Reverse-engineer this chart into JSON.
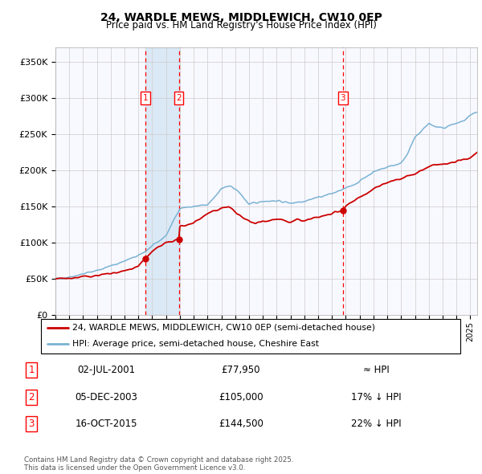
{
  "title": "24, WARDLE MEWS, MIDDLEWICH, CW10 0EP",
  "subtitle": "Price paid vs. HM Land Registry's House Price Index (HPI)",
  "ylabel_ticks": [
    "£0",
    "£50K",
    "£100K",
    "£150K",
    "£200K",
    "£250K",
    "£300K",
    "£350K"
  ],
  "ytick_values": [
    0,
    50000,
    100000,
    150000,
    200000,
    250000,
    300000,
    350000
  ],
  "ylim": [
    0,
    370000
  ],
  "xlim_start": 1995.0,
  "xlim_end": 2025.5,
  "sale_dates": [
    2001.5,
    2003.92,
    2015.79
  ],
  "sale_prices": [
    77950,
    105000,
    144500
  ],
  "sale_labels": [
    "1",
    "2",
    "3"
  ],
  "shade_pairs": [
    [
      2001.5,
      2003.92
    ]
  ],
  "hpi_color": "#7ab3d3",
  "price_color": "#cc0000",
  "grid_color": "#cccccc",
  "background_color": "#f8f8ff",
  "legend_entries": [
    "24, WARDLE MEWS, MIDDLEWICH, CW10 0EP (semi-detached house)",
    "HPI: Average price, semi-detached house, Cheshire East"
  ],
  "sale_table": [
    {
      "num": "1",
      "date": "02-JUL-2001",
      "price": "£77,950",
      "vs_hpi": "≈ HPI"
    },
    {
      "num": "2",
      "date": "05-DEC-2003",
      "price": "£105,000",
      "vs_hpi": "17% ↓ HPI"
    },
    {
      "num": "3",
      "date": "16-OCT-2015",
      "price": "£144,500",
      "vs_hpi": "22% ↓ HPI"
    }
  ],
  "footer": "Contains HM Land Registry data © Crown copyright and database right 2025.\nThis data is licensed under the Open Government Licence v3.0.",
  "hpi_key_years": [
    1995,
    1996,
    1997,
    1998,
    1999,
    2000,
    2001,
    2002,
    2003,
    2004,
    2005,
    2006,
    2007,
    2007.5,
    2008,
    2008.5,
    2009,
    2009.5,
    2010,
    2011,
    2012,
    2013,
    2014,
    2015,
    2016,
    2017,
    2017.5,
    2018,
    2019,
    2020,
    2020.5,
    2021,
    2021.5,
    2022,
    2022.5,
    2023,
    2023.5,
    2024,
    2024.5,
    2025,
    2025.5
  ],
  "hpi_key_values": [
    50000,
    53000,
    57000,
    62000,
    68000,
    75000,
    82000,
    95000,
    110000,
    148000,
    150000,
    152000,
    175000,
    178000,
    175000,
    165000,
    153000,
    155000,
    158000,
    158000,
    155000,
    158000,
    163000,
    168000,
    175000,
    185000,
    192000,
    198000,
    205000,
    210000,
    225000,
    245000,
    255000,
    265000,
    260000,
    258000,
    262000,
    265000,
    268000,
    275000,
    280000
  ],
  "price_key_years": [
    1995,
    1996,
    1997,
    1998,
    1999,
    2000,
    2001.0,
    2001.5,
    2002,
    2003,
    2003.92,
    2004,
    2005,
    2006,
    2007,
    2007.5,
    2008,
    2008.5,
    2009,
    2009.5,
    2010,
    2011,
    2012,
    2012.5,
    2013,
    2013.5,
    2014,
    2014.5,
    2015,
    2015.79,
    2016,
    2016.5,
    2017,
    2017.5,
    2018,
    2018.5,
    2019,
    2019.5,
    2020,
    2020.5,
    2021,
    2021.5,
    2022,
    2022.5,
    2023,
    2023.5,
    2024,
    2024.5,
    2025,
    2025.5
  ],
  "price_key_values": [
    50000,
    51000,
    53000,
    55000,
    57000,
    61000,
    68000,
    77950,
    88000,
    100000,
    105000,
    122000,
    128000,
    140000,
    148000,
    150000,
    143000,
    135000,
    130000,
    127000,
    130000,
    133000,
    128000,
    132000,
    130000,
    133000,
    135000,
    138000,
    140000,
    144500,
    150000,
    158000,
    163000,
    168000,
    175000,
    180000,
    183000,
    186000,
    188000,
    192000,
    195000,
    200000,
    205000,
    208000,
    208000,
    210000,
    212000,
    215000,
    218000,
    225000
  ]
}
